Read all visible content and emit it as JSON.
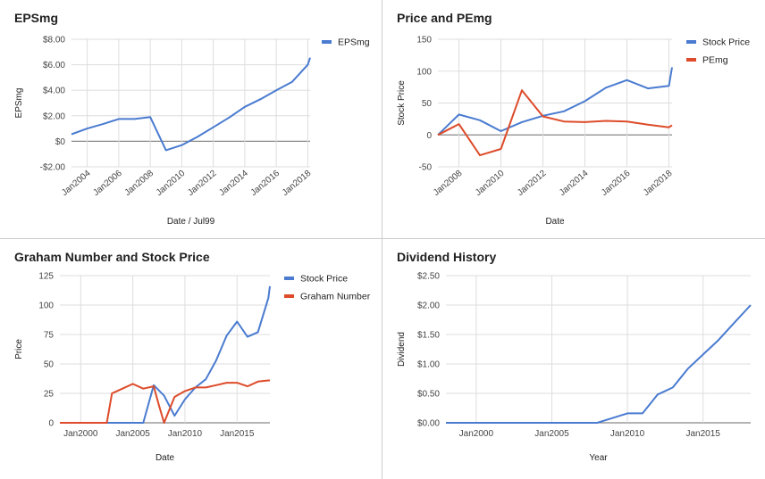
{
  "colors": {
    "blue": "#4a7bd0",
    "red": "#dd4b2a",
    "grid": "#dddddd",
    "baseline": "#888888"
  },
  "chart_data": [
    {
      "type": "line",
      "title": "EPSmg",
      "xlabel": "Date / Jul99",
      "ylabel": "EPSmg",
      "xlim": [
        2003.0,
        2018.15
      ],
      "ylim": [
        -2,
        8
      ],
      "yticks": [
        8,
        6,
        4,
        2,
        0,
        -2
      ],
      "ytick_labels": [
        "$8.00",
        "$6.00",
        "$4.00",
        "$2.00",
        "$0",
        "-$2.00"
      ],
      "xticks": [
        2004,
        2006,
        2008,
        2010,
        2012,
        2014,
        2016,
        2018
      ],
      "xtick_labels": [
        "Jan2004",
        "Jan2006",
        "Jan2008",
        "Jan2010",
        "Jan2012",
        "Jan2014",
        "Jan2016",
        "Jan2018"
      ],
      "xtick_rotated": true,
      "legend": "right",
      "series": [
        {
          "name": "EPSmg",
          "color": "blue",
          "x": [
            2003,
            2004,
            2005,
            2006,
            2007,
            2008,
            2009,
            2010,
            2011,
            2012,
            2013,
            2014,
            2015,
            2016,
            2017,
            2018,
            2018.15
          ],
          "y": [
            0.55,
            1.0,
            1.35,
            1.75,
            1.75,
            1.9,
            -0.7,
            -0.3,
            0.35,
            1.1,
            1.85,
            2.7,
            3.3,
            4.0,
            4.65,
            6.0,
            6.55
          ]
        }
      ]
    },
    {
      "type": "line",
      "title": "Price and PEmg",
      "xlabel": "Date",
      "ylabel": "Stock Price",
      "xlim": [
        2007.0,
        2018.15
      ],
      "ylim": [
        -50,
        150
      ],
      "yticks": [
        150,
        100,
        50,
        0,
        -50
      ],
      "ytick_labels": [
        "150",
        "100",
        "50",
        "0",
        "-50"
      ],
      "xticks": [
        2008,
        2010,
        2012,
        2014,
        2016,
        2018
      ],
      "xtick_labels": [
        "Jan2008",
        "Jan2010",
        "Jan2012",
        "Jan2014",
        "Jan2016",
        "Jan2018"
      ],
      "xtick_rotated": true,
      "legend": "right",
      "series": [
        {
          "name": "Stock Price",
          "color": "blue",
          "x": [
            2007,
            2008,
            2009,
            2010,
            2011,
            2012,
            2013,
            2014,
            2015,
            2016,
            2017,
            2018,
            2018.15
          ],
          "y": [
            0,
            32,
            23,
            6,
            20,
            30,
            37,
            53,
            74,
            86,
            73,
            77,
            106
          ]
        },
        {
          "name": "PEmg",
          "color": "red",
          "x": [
            2007,
            2008,
            2009,
            2010,
            2011,
            2012,
            2013,
            2014,
            2015,
            2016,
            2017,
            2018,
            2018.15
          ],
          "y": [
            0,
            17,
            -32,
            -22,
            70,
            29,
            21,
            20,
            22,
            21,
            16,
            12,
            15
          ]
        }
      ]
    },
    {
      "type": "line",
      "title": "Graham Number and Stock Price",
      "xlabel": "Date",
      "ylabel": "Price",
      "xlim": [
        1998.0,
        2018.15
      ],
      "ylim": [
        0,
        125
      ],
      "yticks": [
        125,
        100,
        75,
        50,
        25,
        0
      ],
      "ytick_labels": [
        "125",
        "100",
        "75",
        "50",
        "25",
        "0"
      ],
      "xticks": [
        2000,
        2005,
        2010,
        2015
      ],
      "xtick_labels": [
        "Jan2000",
        "Jan2005",
        "Jan2010",
        "Jan2015"
      ],
      "xtick_rotated": false,
      "legend": "right",
      "series": [
        {
          "name": "Stock Price",
          "color": "blue",
          "x": [
            1998,
            2006,
            2007,
            2008,
            2009,
            2010,
            2011,
            2012,
            2013,
            2014,
            2015,
            2016,
            2017,
            2018,
            2018.15
          ],
          "y": [
            0,
            0,
            32,
            23,
            6,
            20,
            30,
            37,
            53,
            74,
            86,
            73,
            77,
            106,
            116
          ]
        },
        {
          "name": "Graham Number",
          "color": "red",
          "x": [
            1998,
            2002.5,
            2003,
            2004,
            2005,
            2006,
            2007,
            2007.5,
            2008,
            2009,
            2010,
            2011,
            2012,
            2013,
            2014,
            2015,
            2016,
            2017,
            2018,
            2018.15
          ],
          "y": [
            0,
            0,
            25,
            29,
            33,
            29,
            31,
            15,
            0,
            22,
            27,
            30,
            30,
            32,
            34,
            34,
            31,
            35,
            36,
            36
          ]
        }
      ]
    },
    {
      "type": "line",
      "title": "Dividend History",
      "xlabel": "Year",
      "ylabel": "Dividend",
      "xlim": [
        1998.0,
        2018.15
      ],
      "ylim": [
        0,
        2.5
      ],
      "yticks": [
        2.5,
        2,
        1.5,
        1,
        0.5,
        0
      ],
      "ytick_labels": [
        "$2.50",
        "$2.00",
        "$1.50",
        "$1.00",
        "$0.50",
        "$0.00"
      ],
      "xticks": [
        2000,
        2005,
        2010,
        2015
      ],
      "xtick_labels": [
        "Jan2000",
        "Jan2005",
        "Jan2010",
        "Jan2015"
      ],
      "xtick_rotated": false,
      "legend": "none",
      "series": [
        {
          "name": "Dividend",
          "color": "blue",
          "x": [
            1998,
            2007,
            2008,
            2009,
            2010,
            2011,
            2012,
            2013,
            2014,
            2015,
            2016,
            2017,
            2018.15
          ],
          "y": [
            0,
            0,
            0,
            0.08,
            0.16,
            0.16,
            0.48,
            0.6,
            0.92,
            1.16,
            1.4,
            1.68,
            2.0
          ]
        }
      ]
    }
  ]
}
